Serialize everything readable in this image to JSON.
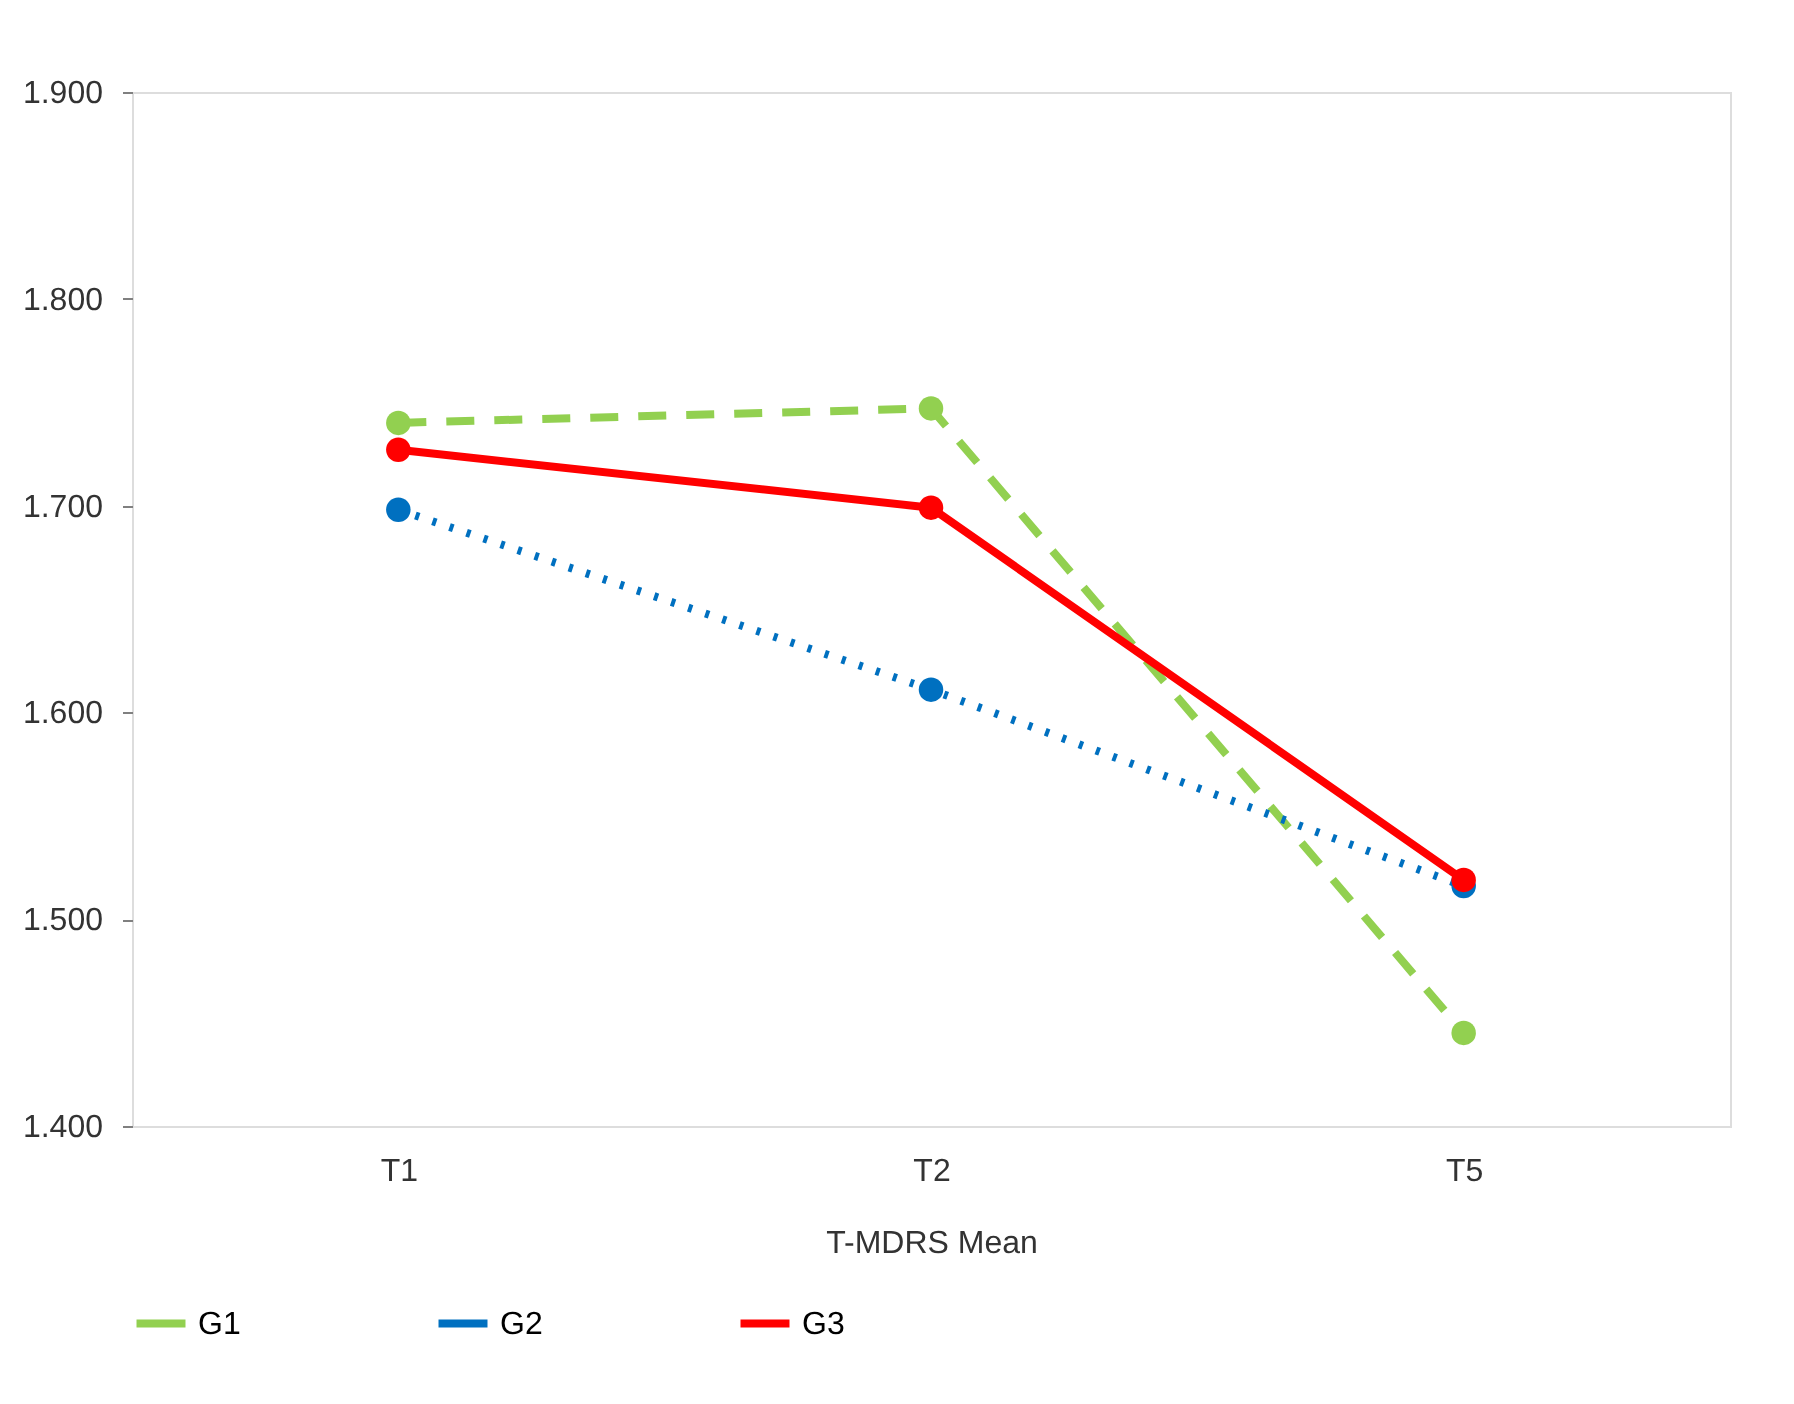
{
  "chart_data": {
    "type": "line",
    "xlabel": "T-MDRS Mean",
    "categories": [
      "T1",
      "T2",
      "T5"
    ],
    "series": [
      {
        "name": "G1",
        "color": "#92d050",
        "line_style": "dashed",
        "values": [
          1.74,
          1.747,
          1.445
        ]
      },
      {
        "name": "G2",
        "color": "#0070c0",
        "line_style": "dotted",
        "values": [
          1.698,
          1.611,
          1.516
        ]
      },
      {
        "name": "G3",
        "color": "#ff0000",
        "line_style": "solid",
        "values": [
          1.727,
          1.699,
          1.519
        ]
      }
    ],
    "ylim": [
      1.4,
      1.9
    ],
    "yticks": [
      {
        "value": 1.4,
        "label": "1.400"
      },
      {
        "value": 1.5,
        "label": "1.500"
      },
      {
        "value": 1.6,
        "label": "1.600"
      },
      {
        "value": 1.7,
        "label": "1.700"
      },
      {
        "value": 1.8,
        "label": "1.800"
      },
      {
        "value": 1.9,
        "label": "1.900"
      }
    ],
    "marker": "circle",
    "grid": false,
    "legend": "bottom"
  }
}
